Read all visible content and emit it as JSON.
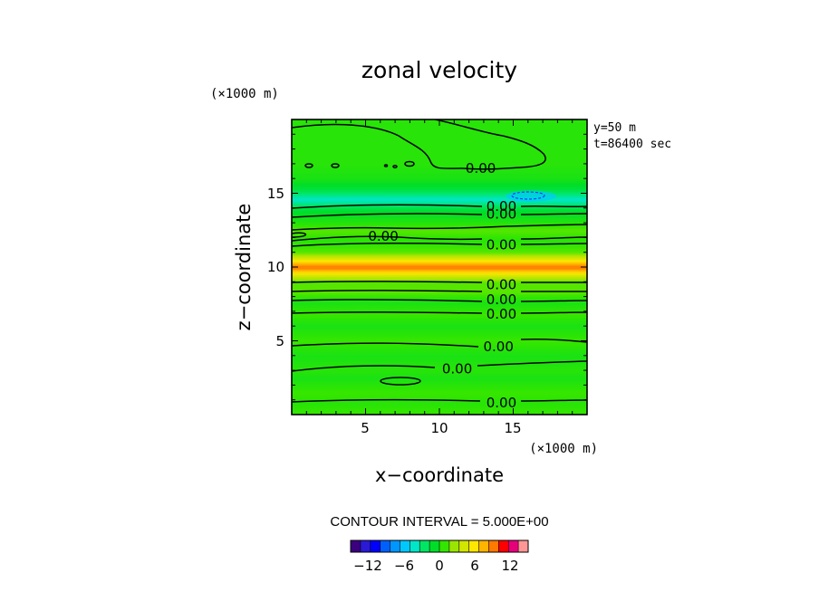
{
  "chart_data": {
    "type": "heatmap",
    "title": "zonal velocity",
    "xlabel": "x−coordinate",
    "ylabel": "z−coordinate",
    "x_unit": "(×1000 m)",
    "z_unit": "(×1000 m)",
    "xlim": [
      0,
      20
    ],
    "ylim": [
      0,
      20
    ],
    "x_ticks": [
      5,
      10,
      15
    ],
    "y_ticks": [
      5,
      10,
      15
    ],
    "info_lines": [
      "y=50 m",
      "t=86400 sec"
    ],
    "contour_interval_text": "CONTOUR INTERVAL = 5.000E+00",
    "contour_labels": [
      {
        "text": "0.00",
        "x": 12.8,
        "z": 16.7
      },
      {
        "text": "0.00",
        "x": 14.2,
        "z": 14.1
      },
      {
        "text": "0.00",
        "x": 14.2,
        "z": 13.6
      },
      {
        "text": "0.00",
        "x": 6.2,
        "z": 12.1
      },
      {
        "text": "0.00",
        "x": 14.2,
        "z": 11.5
      },
      {
        "text": "0.00",
        "x": 14.2,
        "z": 8.8
      },
      {
        "text": "0.00",
        "x": 14.2,
        "z": 7.8
      },
      {
        "text": "0.00",
        "x": 14.2,
        "z": 6.8
      },
      {
        "text": "0.00",
        "x": 14.0,
        "z": 4.6
      },
      {
        "text": "0.00",
        "x": 11.2,
        "z": 3.1
      },
      {
        "text": "0.00",
        "x": 14.2,
        "z": 0.8
      }
    ],
    "profile": [
      {
        "z": 0.0,
        "u": 1.0
      },
      {
        "z": 0.8,
        "u": 0.5
      },
      {
        "z": 1.5,
        "u": 1.0
      },
      {
        "z": 2.5,
        "u": 0.0
      },
      {
        "z": 3.0,
        "u": 0.5
      },
      {
        "z": 4.0,
        "u": 0.0
      },
      {
        "z": 5.0,
        "u": 1.0
      },
      {
        "z": 6.0,
        "u": 0.0
      },
      {
        "z": 6.8,
        "u": 1.0
      },
      {
        "z": 7.6,
        "u": 0.0
      },
      {
        "z": 8.3,
        "u": 1.5
      },
      {
        "z": 9.0,
        "u": 1.5
      },
      {
        "z": 9.5,
        "u": 5.0
      },
      {
        "z": 10.0,
        "u": 10.0
      },
      {
        "z": 10.5,
        "u": 5.5
      },
      {
        "z": 11.0,
        "u": 1.5
      },
      {
        "z": 11.8,
        "u": 0.5
      },
      {
        "z": 12.5,
        "u": 1.5
      },
      {
        "z": 13.2,
        "u": 0.0
      },
      {
        "z": 13.8,
        "u": -1.0
      },
      {
        "z": 14.6,
        "u": -4.5
      },
      {
        "z": 15.3,
        "u": -1.5
      },
      {
        "z": 16.0,
        "u": 0.0
      },
      {
        "z": 17.0,
        "u": 0.5
      },
      {
        "z": 18.5,
        "u": 0.5
      },
      {
        "z": 20.0,
        "u": 0.5
      }
    ],
    "colorbar": {
      "ticks": [
        {
          "value": -12,
          "label": "−12"
        },
        {
          "value": -6,
          "label": "−6"
        },
        {
          "value": 0,
          "label": "0"
        },
        {
          "value": 6,
          "label": "6"
        },
        {
          "value": 12,
          "label": "12"
        }
      ],
      "colors": [
        "#3a0080",
        "#2a1ad6",
        "#0000ff",
        "#0060ff",
        "#0096ff",
        "#00c8ff",
        "#00e6c8",
        "#00e664",
        "#00dd28",
        "#33e600",
        "#9be600",
        "#d2e600",
        "#ffe600",
        "#ffb400",
        "#ff7800",
        "#ff0000",
        "#e6007a",
        "#ff9696"
      ],
      "vmin": -15,
      "vmax": 15
    }
  }
}
